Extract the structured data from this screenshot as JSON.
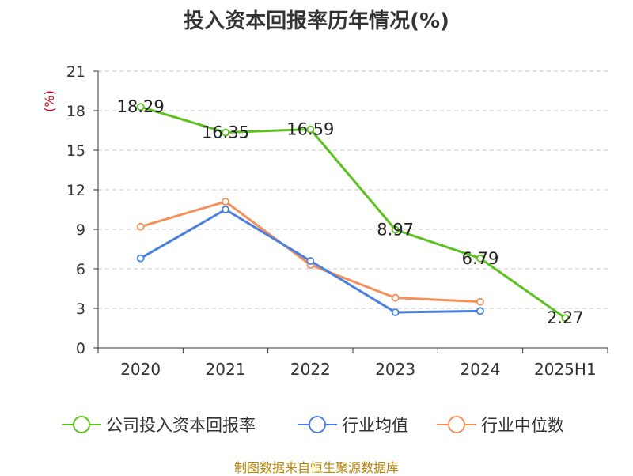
{
  "chart_data": {
    "type": "line",
    "title": "投入资本回报率历年情况(%)",
    "ylabel": "(%)",
    "categories": [
      "2020",
      "2021",
      "2022",
      "2023",
      "2024",
      "2025H1"
    ],
    "ylim": [
      0,
      21
    ],
    "yticks": [
      0,
      3,
      6,
      9,
      12,
      15,
      18,
      21
    ],
    "grid": true,
    "legend_position": "bottom",
    "series": [
      {
        "name": "公司投入资本回报率",
        "color": "#5cc01f",
        "values": [
          18.29,
          16.35,
          16.59,
          8.97,
          6.79,
          2.27
        ],
        "data_labels": [
          "18.29",
          "16.35",
          "16.59",
          "8.97",
          "6.79",
          "2.27"
        ]
      },
      {
        "name": "行业均值",
        "color": "#4a7fdd",
        "values": [
          6.8,
          10.5,
          6.6,
          2.7,
          2.8,
          null
        ]
      },
      {
        "name": "行业中位数",
        "color": "#f4905a",
        "values": [
          9.2,
          11.1,
          6.3,
          3.8,
          3.5,
          null
        ]
      }
    ]
  },
  "footer": {
    "source": "制图数据来自恒生聚源数据库"
  }
}
